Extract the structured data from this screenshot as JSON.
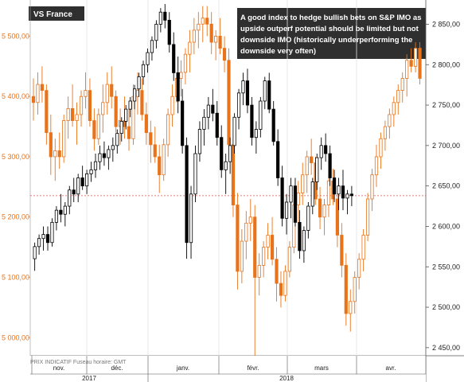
{
  "chart_data": {
    "type": "candlestick",
    "title": "VS France",
    "annotation": "A good index to hedge bullish bets on S&P IMO as upside outperf potential should be limited but not downside IMO (historically underperforming the downside very often)",
    "footer_caption": "PRIX INDICATIF  Fuseau horaire: GMT",
    "left_axis": {
      "series": "orange candlesticks",
      "ticks": [
        "5 000,00",
        "5 100,00",
        "5 200,00",
        "5 300,00",
        "5 400,00",
        "5 500,00"
      ],
      "ylim": [
        4970,
        5560
      ]
    },
    "right_axis": {
      "series": "black/white candlesticks",
      "ticks": [
        "2 450,00",
        "2 500,00",
        "2 550,00",
        "2 600,00",
        "2 650,00",
        "2 700,00",
        "2 750,00",
        "2 800,00",
        "2 850,00"
      ],
      "ylim": [
        2440,
        2880
      ]
    },
    "x_months": [
      "nov.",
      "déc.",
      "janv.",
      "févr.",
      "mars",
      "avr."
    ],
    "x_years": [
      "2017",
      "2018"
    ],
    "reference_level_right": 2638,
    "series": [
      {
        "axis": "left",
        "color": "#e8731a",
        "ohlc": [
          [
            5400,
            5430,
            5360,
            5390
          ],
          [
            5390,
            5440,
            5370,
            5420
          ],
          [
            5420,
            5450,
            5390,
            5410
          ],
          [
            5410,
            5420,
            5320,
            5340
          ],
          [
            5340,
            5370,
            5270,
            5300
          ],
          [
            5300,
            5330,
            5260,
            5310
          ],
          [
            5310,
            5340,
            5280,
            5300
          ],
          [
            5300,
            5370,
            5290,
            5360
          ],
          [
            5360,
            5400,
            5330,
            5380
          ],
          [
            5380,
            5420,
            5350,
            5360
          ],
          [
            5360,
            5390,
            5320,
            5370
          ],
          [
            5370,
            5410,
            5350,
            5400
          ],
          [
            5400,
            5440,
            5380,
            5410
          ],
          [
            5410,
            5430,
            5350,
            5360
          ],
          [
            5360,
            5380,
            5310,
            5330
          ],
          [
            5330,
            5380,
            5320,
            5370
          ],
          [
            5370,
            5420,
            5340,
            5390
          ],
          [
            5390,
            5440,
            5370,
            5420
          ],
          [
            5420,
            5450,
            5380,
            5400
          ],
          [
            5400,
            5410,
            5340,
            5350
          ],
          [
            5350,
            5380,
            5320,
            5360
          ],
          [
            5360,
            5400,
            5330,
            5350
          ],
          [
            5350,
            5380,
            5310,
            5330
          ],
          [
            5330,
            5420,
            5320,
            5400
          ],
          [
            5400,
            5440,
            5370,
            5410
          ],
          [
            5410,
            5430,
            5360,
            5370
          ],
          [
            5370,
            5390,
            5320,
            5340
          ],
          [
            5340,
            5360,
            5290,
            5320
          ],
          [
            5320,
            5350,
            5290,
            5300
          ],
          [
            5300,
            5320,
            5240,
            5270
          ],
          [
            5270,
            5330,
            5260,
            5320
          ],
          [
            5320,
            5380,
            5300,
            5370
          ],
          [
            5370,
            5420,
            5350,
            5400
          ],
          [
            5400,
            5440,
            5390,
            5430
          ],
          [
            5430,
            5460,
            5400,
            5440
          ],
          [
            5440,
            5480,
            5420,
            5470
          ],
          [
            5470,
            5510,
            5440,
            5490
          ],
          [
            5490,
            5530,
            5470,
            5510
          ],
          [
            5510,
            5540,
            5480,
            5520
          ],
          [
            5520,
            5550,
            5490,
            5530
          ],
          [
            5530,
            5550,
            5500,
            5520
          ],
          [
            5520,
            5540,
            5470,
            5490
          ],
          [
            5490,
            5510,
            5460,
            5500
          ],
          [
            5500,
            5530,
            5470,
            5480
          ],
          [
            5480,
            5500,
            5440,
            5460
          ],
          [
            5460,
            5480,
            5300,
            5320
          ],
          [
            5320,
            5340,
            5200,
            5220
          ],
          [
            5220,
            5240,
            5080,
            5110
          ],
          [
            5110,
            5180,
            5090,
            5160
          ],
          [
            5160,
            5210,
            5130,
            5190
          ],
          [
            5190,
            5230,
            5160,
            5200
          ],
          [
            5200,
            5220,
            4960,
            5100
          ],
          [
            5100,
            5140,
            5070,
            5120
          ],
          [
            5120,
            5160,
            5100,
            5150
          ],
          [
            5150,
            5190,
            5130,
            5170
          ],
          [
            5170,
            5200,
            5120,
            5130
          ],
          [
            5130,
            5150,
            5060,
            5090
          ],
          [
            5090,
            5110,
            5050,
            5070
          ],
          [
            5070,
            5120,
            5060,
            5110
          ],
          [
            5110,
            5160,
            5100,
            5150
          ],
          [
            5150,
            5230,
            5140,
            5220
          ],
          [
            5220,
            5260,
            5190,
            5240
          ],
          [
            5240,
            5290,
            5220,
            5270
          ],
          [
            5270,
            5310,
            5240,
            5300
          ],
          [
            5300,
            5330,
            5270,
            5290
          ],
          [
            5290,
            5300,
            5220,
            5230
          ],
          [
            5230,
            5250,
            5180,
            5200
          ],
          [
            5200,
            5230,
            5170,
            5220
          ],
          [
            5220,
            5270,
            5200,
            5260
          ],
          [
            5260,
            5280,
            5220,
            5230
          ],
          [
            5230,
            5240,
            5150,
            5170
          ],
          [
            5170,
            5190,
            5100,
            5120
          ],
          [
            5120,
            5140,
            5020,
            5040
          ],
          [
            5040,
            5080,
            5010,
            5060
          ],
          [
            5060,
            5110,
            5040,
            5100
          ],
          [
            5100,
            5140,
            5080,
            5130
          ],
          [
            5130,
            5180,
            5110,
            5170
          ],
          [
            5170,
            5240,
            5160,
            5230
          ],
          [
            5230,
            5280,
            5210,
            5270
          ],
          [
            5270,
            5320,
            5250,
            5300
          ],
          [
            5300,
            5340,
            5280,
            5330
          ],
          [
            5330,
            5360,
            5310,
            5350
          ],
          [
            5350,
            5380,
            5330,
            5370
          ],
          [
            5370,
            5400,
            5350,
            5390
          ],
          [
            5390,
            5420,
            5370,
            5410
          ],
          [
            5410,
            5440,
            5390,
            5430
          ],
          [
            5430,
            5470,
            5400,
            5460
          ],
          [
            5460,
            5480,
            5440,
            5450
          ],
          [
            5450,
            5490,
            5440,
            5480
          ],
          [
            5480,
            5490,
            5420,
            5430
          ]
        ]
      },
      {
        "axis": "right",
        "color": "#000000",
        "ohlc": [
          [
            2560,
            2580,
            2545,
            2575
          ],
          [
            2575,
            2590,
            2565,
            2585
          ],
          [
            2585,
            2600,
            2570,
            2590
          ],
          [
            2590,
            2600,
            2570,
            2580
          ],
          [
            2580,
            2610,
            2575,
            2605
          ],
          [
            2605,
            2625,
            2595,
            2620
          ],
          [
            2620,
            2640,
            2605,
            2615
          ],
          [
            2615,
            2630,
            2600,
            2625
          ],
          [
            2625,
            2650,
            2615,
            2645
          ],
          [
            2645,
            2660,
            2630,
            2640
          ],
          [
            2640,
            2665,
            2630,
            2660
          ],
          [
            2660,
            2675,
            2645,
            2650
          ],
          [
            2650,
            2670,
            2640,
            2665
          ],
          [
            2665,
            2680,
            2655,
            2670
          ],
          [
            2670,
            2690,
            2660,
            2680
          ],
          [
            2680,
            2700,
            2670,
            2690
          ],
          [
            2690,
            2705,
            2675,
            2685
          ],
          [
            2685,
            2700,
            2670,
            2695
          ],
          [
            2695,
            2710,
            2680,
            2700
          ],
          [
            2700,
            2720,
            2690,
            2715
          ],
          [
            2715,
            2735,
            2705,
            2730
          ],
          [
            2730,
            2750,
            2720,
            2745
          ],
          [
            2745,
            2760,
            2735,
            2755
          ],
          [
            2755,
            2775,
            2745,
            2770
          ],
          [
            2770,
            2790,
            2760,
            2785
          ],
          [
            2785,
            2805,
            2775,
            2800
          ],
          [
            2800,
            2820,
            2790,
            2815
          ],
          [
            2815,
            2835,
            2805,
            2830
          ],
          [
            2830,
            2855,
            2820,
            2850
          ],
          [
            2850,
            2870,
            2840,
            2865
          ],
          [
            2865,
            2875,
            2845,
            2855
          ],
          [
            2855,
            2865,
            2815,
            2825
          ],
          [
            2825,
            2840,
            2780,
            2790
          ],
          [
            2790,
            2810,
            2740,
            2755
          ],
          [
            2755,
            2770,
            2690,
            2700
          ],
          [
            2700,
            2710,
            2560,
            2580
          ],
          [
            2580,
            2650,
            2560,
            2640
          ],
          [
            2640,
            2700,
            2630,
            2690
          ],
          [
            2690,
            2730,
            2680,
            2720
          ],
          [
            2720,
            2745,
            2700,
            2735
          ],
          [
            2735,
            2760,
            2720,
            2750
          ],
          [
            2750,
            2770,
            2730,
            2740
          ],
          [
            2740,
            2755,
            2700,
            2710
          ],
          [
            2710,
            2725,
            2660,
            2670
          ],
          [
            2670,
            2690,
            2640,
            2680
          ],
          [
            2680,
            2710,
            2665,
            2700
          ],
          [
            2700,
            2740,
            2690,
            2735
          ],
          [
            2735,
            2770,
            2720,
            2765
          ],
          [
            2765,
            2790,
            2750,
            2780
          ],
          [
            2780,
            2795,
            2740,
            2750
          ],
          [
            2750,
            2760,
            2700,
            2710
          ],
          [
            2710,
            2730,
            2690,
            2720
          ],
          [
            2720,
            2760,
            2710,
            2755
          ],
          [
            2755,
            2785,
            2745,
            2780
          ],
          [
            2780,
            2790,
            2740,
            2745
          ],
          [
            2745,
            2755,
            2700,
            2705
          ],
          [
            2705,
            2720,
            2650,
            2660
          ],
          [
            2660,
            2675,
            2600,
            2610
          ],
          [
            2610,
            2640,
            2590,
            2630
          ],
          [
            2630,
            2660,
            2610,
            2650
          ],
          [
            2650,
            2660,
            2600,
            2605
          ],
          [
            2605,
            2620,
            2560,
            2570
          ],
          [
            2570,
            2600,
            2555,
            2595
          ],
          [
            2595,
            2630,
            2585,
            2625
          ],
          [
            2625,
            2660,
            2615,
            2655
          ],
          [
            2655,
            2690,
            2645,
            2685
          ],
          [
            2685,
            2710,
            2670,
            2700
          ],
          [
            2700,
            2715,
            2680,
            2690
          ],
          [
            2690,
            2700,
            2650,
            2660
          ],
          [
            2660,
            2670,
            2630,
            2640
          ],
          [
            2640,
            2660,
            2620,
            2650
          ],
          [
            2650,
            2670,
            2620,
            2635
          ],
          [
            2635,
            2645,
            2615,
            2640
          ],
          [
            2640,
            2650,
            2625,
            2638
          ]
        ]
      }
    ]
  }
}
